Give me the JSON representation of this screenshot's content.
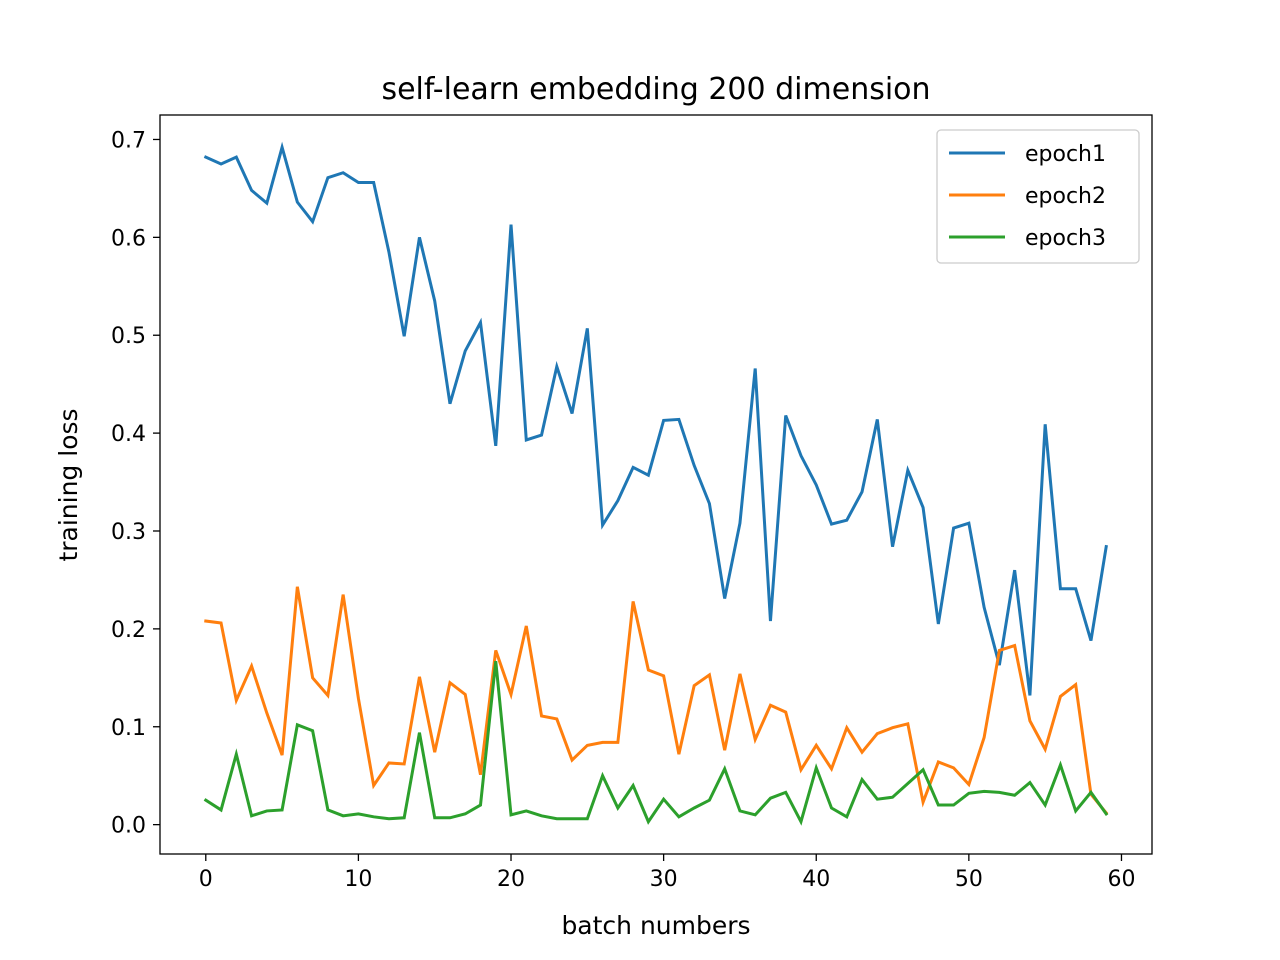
{
  "chart_data": {
    "type": "line",
    "title": "self-learn embedding 200 dimension",
    "xlabel": "batch numbers",
    "ylabel": "training loss",
    "xlim": [
      -3,
      62
    ],
    "ylim": [
      -0.03,
      0.725
    ],
    "xticks": [
      0,
      10,
      20,
      30,
      40,
      50,
      60
    ],
    "xtick_labels": [
      "0",
      "10",
      "20",
      "30",
      "40",
      "50",
      "60"
    ],
    "yticks": [
      0.0,
      0.1,
      0.2,
      0.3,
      0.4,
      0.5,
      0.6,
      0.7
    ],
    "ytick_labels": [
      "0.0",
      "0.1",
      "0.2",
      "0.3",
      "0.4",
      "0.5",
      "0.6",
      "0.7"
    ],
    "grid": false,
    "legend": "top-right",
    "x": [
      0,
      1,
      2,
      3,
      4,
      5,
      6,
      7,
      8,
      9,
      10,
      11,
      12,
      13,
      14,
      15,
      16,
      17,
      18,
      19,
      20,
      21,
      22,
      23,
      24,
      25,
      26,
      27,
      28,
      29,
      30,
      31,
      32,
      33,
      34,
      35,
      36,
      37,
      38,
      39,
      40,
      41,
      42,
      43,
      44,
      45,
      46,
      47,
      48,
      49,
      50,
      51,
      52,
      53,
      54,
      55,
      56,
      57,
      58,
      59
    ],
    "series": [
      {
        "name": "epoch1",
        "color": "#1f77b4",
        "values": [
          0.682,
          0.675,
          0.682,
          0.648,
          0.635,
          0.692,
          0.636,
          0.616,
          0.661,
          0.666,
          0.656,
          0.656,
          0.585,
          0.499,
          0.6,
          0.535,
          0.43,
          0.484,
          0.513,
          0.387,
          0.613,
          0.393,
          0.398,
          0.468,
          0.42,
          0.507,
          0.306,
          0.331,
          0.365,
          0.357,
          0.413,
          0.414,
          0.367,
          0.328,
          0.231,
          0.308,
          0.466,
          0.208,
          0.418,
          0.377,
          0.347,
          0.307,
          0.311,
          0.34,
          0.414,
          0.284,
          0.362,
          0.324,
          0.205,
          0.303,
          0.308,
          0.222,
          0.163,
          0.26,
          0.132,
          0.409,
          0.241,
          0.241,
          0.188,
          0.284
        ]
      },
      {
        "name": "epoch2",
        "color": "#ff7f0e",
        "values": [
          0.208,
          0.206,
          0.127,
          0.162,
          0.114,
          0.071,
          0.243,
          0.15,
          0.132,
          0.235,
          0.129,
          0.04,
          0.063,
          0.062,
          0.151,
          0.074,
          0.145,
          0.133,
          0.051,
          0.178,
          0.133,
          0.203,
          0.111,
          0.108,
          0.066,
          0.081,
          0.084,
          0.084,
          0.228,
          0.158,
          0.152,
          0.072,
          0.142,
          0.153,
          0.076,
          0.154,
          0.087,
          0.122,
          0.115,
          0.056,
          0.081,
          0.057,
          0.099,
          0.074,
          0.093,
          0.099,
          0.103,
          0.023,
          0.064,
          0.058,
          0.041,
          0.089,
          0.178,
          0.183,
          0.106,
          0.077,
          0.131,
          0.143,
          0.031,
          0.012
        ]
      },
      {
        "name": "epoch3",
        "color": "#2ca02c",
        "values": [
          0.025,
          0.015,
          0.072,
          0.009,
          0.014,
          0.015,
          0.102,
          0.096,
          0.015,
          0.009,
          0.011,
          0.008,
          0.006,
          0.007,
          0.094,
          0.007,
          0.007,
          0.011,
          0.02,
          0.167,
          0.01,
          0.014,
          0.009,
          0.006,
          0.006,
          0.006,
          0.05,
          0.017,
          0.04,
          0.003,
          0.026,
          0.008,
          0.017,
          0.025,
          0.057,
          0.014,
          0.01,
          0.027,
          0.033,
          0.003,
          0.058,
          0.017,
          0.008,
          0.046,
          0.026,
          0.028,
          0.042,
          0.056,
          0.02,
          0.02,
          0.032,
          0.034,
          0.033,
          0.03,
          0.043,
          0.02,
          0.061,
          0.014,
          0.033,
          0.011
        ]
      }
    ]
  }
}
